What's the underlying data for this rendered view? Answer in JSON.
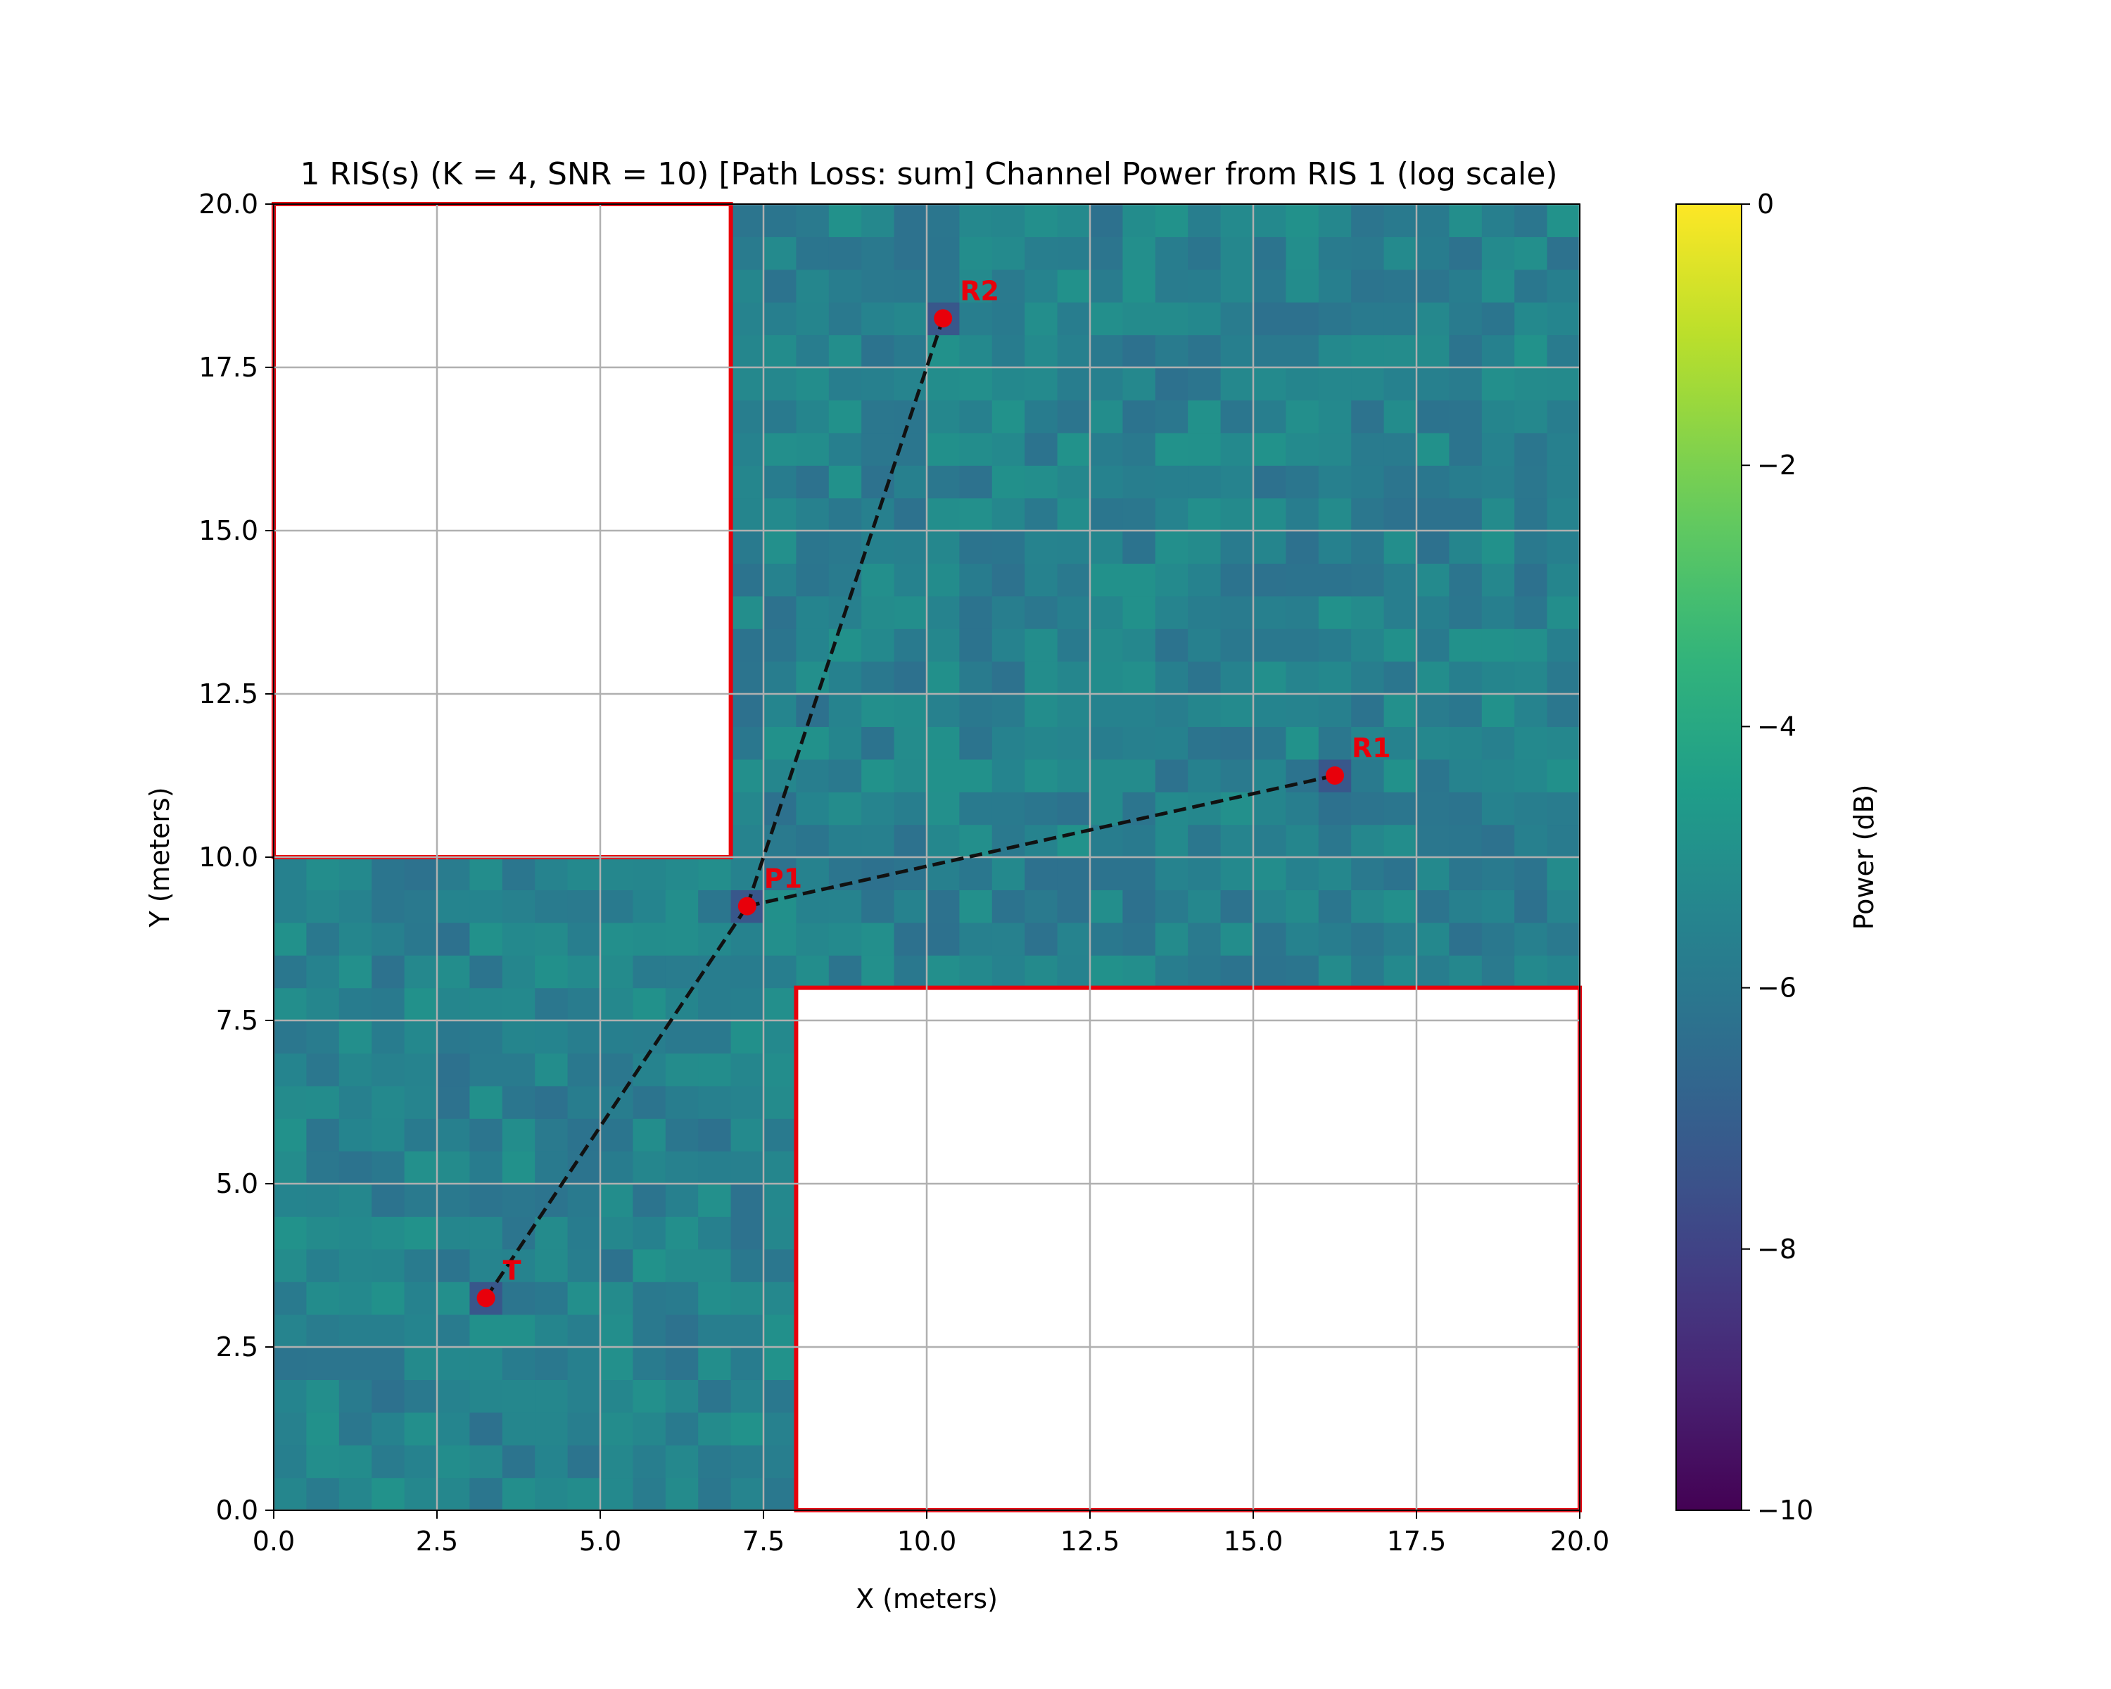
{
  "chart_data": {
    "type": "heatmap",
    "title": "1 RIS(s) (K = 4, SNR = 10) [Path Loss: sum] Channel Power from RIS 1 (log scale)",
    "xlabel": "X (meters)",
    "ylabel": "Y (meters)",
    "xlim": [
      0.0,
      20.0
    ],
    "ylim": [
      0.0,
      20.0
    ],
    "x_ticks": [
      "0.0",
      "2.5",
      "5.0",
      "7.5",
      "10.0",
      "12.5",
      "15.0",
      "17.5",
      "20.0"
    ],
    "y_ticks": [
      "0.0",
      "2.5",
      "5.0",
      "7.5",
      "10.0",
      "12.5",
      "15.0",
      "17.5",
      "20.0"
    ],
    "grid": true,
    "heatmap": {
      "colormap": "viridis",
      "grid_cells": [
        40,
        40
      ],
      "typical_power_db": -5.6,
      "power_variation_db": 0.7,
      "marker_cell_power_db": -7.3
    },
    "colorbar": {
      "label": "Power (dB)",
      "range": [
        -10,
        0
      ],
      "ticks": [
        "0",
        "−2",
        "−4",
        "−6",
        "−8",
        "−10"
      ],
      "tick_values": [
        0,
        -2,
        -4,
        -6,
        -8,
        -10
      ]
    },
    "obstacles": [
      {
        "x0": 0.0,
        "y0": 10.0,
        "x1": 7.0,
        "y1": 20.0,
        "edge_color": "#e8000b"
      },
      {
        "x0": 8.0,
        "y0": 0.0,
        "x1": 20.0,
        "y1": 8.0,
        "edge_color": "#e8000b"
      }
    ],
    "points": [
      {
        "label": "T",
        "x": 3.25,
        "y": 3.25
      },
      {
        "label": "P1",
        "x": 7.25,
        "y": 9.25
      },
      {
        "label": "R1",
        "x": 16.25,
        "y": 11.25
      },
      {
        "label": "R2",
        "x": 10.25,
        "y": 18.25
      }
    ],
    "paths": [
      {
        "from": "T",
        "to": "P1"
      },
      {
        "from": "P1",
        "to": "R1"
      },
      {
        "from": "P1",
        "to": "R2"
      }
    ],
    "colors": {
      "marker": "#e8000b",
      "path_line": "#111111",
      "grid": "#b0b0b0",
      "obstacle_fill": "#ffffff"
    }
  }
}
